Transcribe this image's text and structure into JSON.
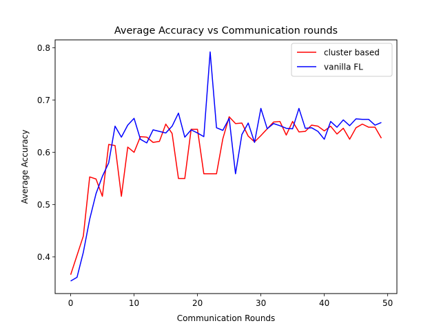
{
  "chart_data": {
    "type": "line",
    "title": "Average Accuracy vs Communication rounds",
    "xlabel": "Communication Rounds",
    "ylabel": "Average Accuracy",
    "xlim": [
      -2.45,
      51.45
    ],
    "ylim": [
      0.33,
      0.815
    ],
    "xticks": [
      0,
      10,
      20,
      30,
      40,
      50
    ],
    "yticks": [
      0.4,
      0.5,
      0.6,
      0.7,
      0.8
    ],
    "xtick_labels": [
      "0",
      "10",
      "20",
      "30",
      "40",
      "50"
    ],
    "ytick_labels": [
      "0.4",
      "0.5",
      "0.6",
      "0.7",
      "0.8"
    ],
    "grid": false,
    "legend_position": "top-right",
    "x": [
      0,
      1,
      2,
      3,
      4,
      5,
      6,
      7,
      8,
      9,
      10,
      11,
      12,
      13,
      14,
      15,
      16,
      17,
      18,
      19,
      20,
      21,
      22,
      23,
      24,
      25,
      26,
      27,
      28,
      29,
      30,
      31,
      32,
      33,
      34,
      35,
      36,
      37,
      38,
      39,
      40,
      41,
      42,
      43,
      44,
      45,
      46,
      47,
      48,
      49
    ],
    "series": [
      {
        "name": "cluster based",
        "color": "#ff0000",
        "values": [
          0.366,
          0.403,
          0.44,
          0.553,
          0.549,
          0.516,
          0.615,
          0.613,
          0.516,
          0.61,
          0.6,
          0.63,
          0.629,
          0.619,
          0.621,
          0.654,
          0.636,
          0.55,
          0.55,
          0.644,
          0.644,
          0.559,
          0.559,
          0.559,
          0.626,
          0.668,
          0.655,
          0.656,
          0.631,
          0.62,
          0.632,
          0.645,
          0.658,
          0.659,
          0.633,
          0.659,
          0.639,
          0.64,
          0.652,
          0.65,
          0.641,
          0.65,
          0.635,
          0.646,
          0.625,
          0.647,
          0.654,
          0.648,
          0.648,
          0.627
        ]
      },
      {
        "name": "vanilla FL",
        "color": "#0000ff",
        "values": [
          0.354,
          0.361,
          0.409,
          0.472,
          0.521,
          0.554,
          0.58,
          0.65,
          0.629,
          0.652,
          0.665,
          0.625,
          0.618,
          0.643,
          0.64,
          0.637,
          0.65,
          0.675,
          0.629,
          0.643,
          0.637,
          0.63,
          0.792,
          0.647,
          0.642,
          0.665,
          0.559,
          0.634,
          0.656,
          0.619,
          0.684,
          0.645,
          0.655,
          0.651,
          0.646,
          0.645,
          0.684,
          0.646,
          0.647,
          0.64,
          0.625,
          0.659,
          0.648,
          0.662,
          0.651,
          0.664,
          0.663,
          0.663,
          0.652,
          0.657
        ]
      }
    ]
  }
}
